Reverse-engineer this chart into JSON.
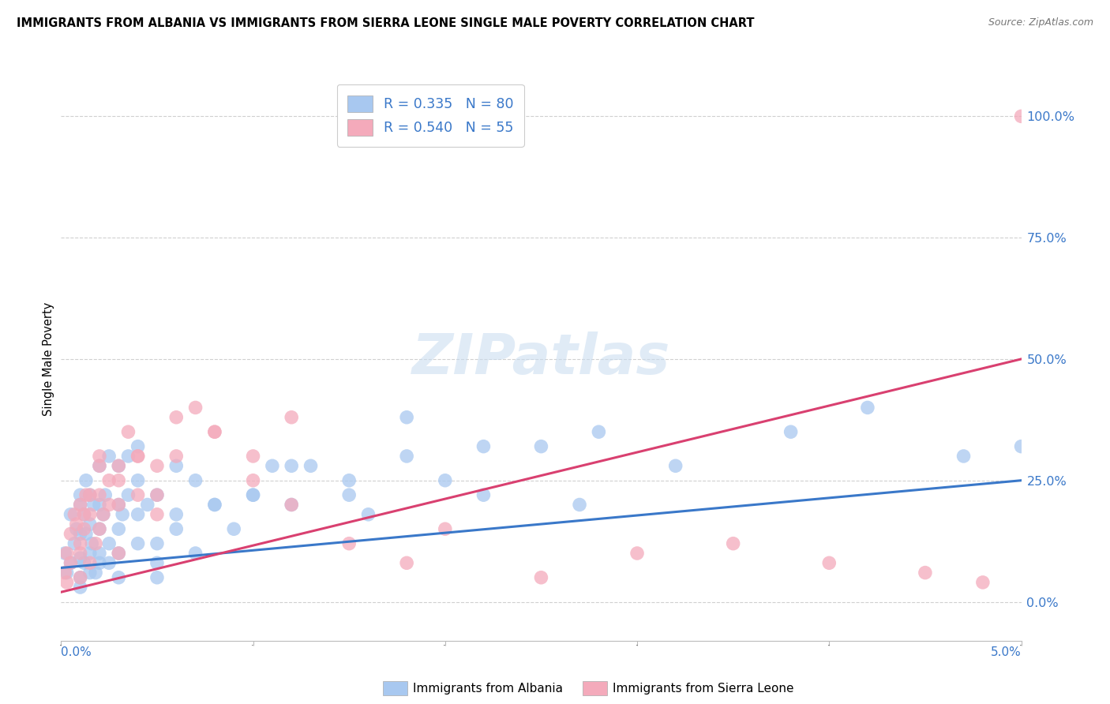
{
  "title": "IMMIGRANTS FROM ALBANIA VS IMMIGRANTS FROM SIERRA LEONE SINGLE MALE POVERTY CORRELATION CHART",
  "source": "Source: ZipAtlas.com",
  "ylabel": "Single Male Poverty",
  "ytick_values": [
    0.0,
    0.25,
    0.5,
    0.75,
    1.0
  ],
  "xlim": [
    0.0,
    0.05
  ],
  "ylim": [
    -0.08,
    1.08
  ],
  "albania_color": "#A8C8F0",
  "sierra_color": "#F4AABB",
  "albania_line_color": "#3A78C9",
  "sierra_line_color": "#D94070",
  "ytick_color": "#3A78C9",
  "watermark_color": "#C8DCF0",
  "albania_R": 0.335,
  "albania_N": 80,
  "sierra_R": 0.54,
  "sierra_N": 55,
  "albania_scatter_x": [
    0.0002,
    0.0003,
    0.0005,
    0.0005,
    0.0007,
    0.0008,
    0.001,
    0.001,
    0.001,
    0.001,
    0.001,
    0.0012,
    0.0012,
    0.0013,
    0.0013,
    0.0015,
    0.0015,
    0.0015,
    0.0016,
    0.0017,
    0.0018,
    0.002,
    0.002,
    0.002,
    0.002,
    0.0022,
    0.0023,
    0.0025,
    0.0025,
    0.003,
    0.003,
    0.003,
    0.003,
    0.0032,
    0.0035,
    0.0035,
    0.004,
    0.004,
    0.004,
    0.0045,
    0.005,
    0.005,
    0.005,
    0.006,
    0.006,
    0.007,
    0.007,
    0.008,
    0.009,
    0.01,
    0.011,
    0.012,
    0.013,
    0.015,
    0.016,
    0.018,
    0.02,
    0.022,
    0.025,
    0.027,
    0.001,
    0.0015,
    0.002,
    0.0025,
    0.003,
    0.004,
    0.005,
    0.006,
    0.008,
    0.01,
    0.012,
    0.015,
    0.018,
    0.022,
    0.028,
    0.032,
    0.038,
    0.042,
    0.047,
    0.05
  ],
  "albania_scatter_y": [
    0.1,
    0.06,
    0.08,
    0.18,
    0.12,
    0.15,
    0.05,
    0.09,
    0.14,
    0.2,
    0.22,
    0.08,
    0.18,
    0.14,
    0.25,
    0.1,
    0.16,
    0.22,
    0.12,
    0.2,
    0.06,
    0.08,
    0.15,
    0.2,
    0.28,
    0.18,
    0.22,
    0.12,
    0.3,
    0.1,
    0.15,
    0.2,
    0.28,
    0.18,
    0.22,
    0.3,
    0.18,
    0.25,
    0.32,
    0.2,
    0.05,
    0.12,
    0.22,
    0.28,
    0.18,
    0.1,
    0.25,
    0.2,
    0.15,
    0.22,
    0.28,
    0.2,
    0.28,
    0.22,
    0.18,
    0.3,
    0.25,
    0.22,
    0.32,
    0.2,
    0.03,
    0.06,
    0.1,
    0.08,
    0.05,
    0.12,
    0.08,
    0.15,
    0.2,
    0.22,
    0.28,
    0.25,
    0.38,
    0.32,
    0.35,
    0.28,
    0.35,
    0.4,
    0.3,
    0.32
  ],
  "sierra_scatter_x": [
    0.0002,
    0.0003,
    0.0005,
    0.0007,
    0.001,
    0.001,
    0.001,
    0.0012,
    0.0013,
    0.0015,
    0.0015,
    0.0018,
    0.002,
    0.002,
    0.002,
    0.0022,
    0.0025,
    0.003,
    0.003,
    0.003,
    0.0035,
    0.004,
    0.004,
    0.005,
    0.005,
    0.006,
    0.007,
    0.008,
    0.01,
    0.012,
    0.0003,
    0.0005,
    0.0008,
    0.001,
    0.0012,
    0.0015,
    0.002,
    0.0025,
    0.003,
    0.004,
    0.005,
    0.006,
    0.008,
    0.01,
    0.012,
    0.015,
    0.018,
    0.02,
    0.025,
    0.03,
    0.035,
    0.04,
    0.045,
    0.048,
    0.05
  ],
  "sierra_scatter_y": [
    0.06,
    0.1,
    0.14,
    0.18,
    0.05,
    0.12,
    0.2,
    0.15,
    0.22,
    0.08,
    0.18,
    0.12,
    0.15,
    0.22,
    0.3,
    0.18,
    0.25,
    0.1,
    0.2,
    0.28,
    0.35,
    0.22,
    0.3,
    0.18,
    0.28,
    0.38,
    0.4,
    0.35,
    0.3,
    0.38,
    0.04,
    0.08,
    0.16,
    0.1,
    0.18,
    0.22,
    0.28,
    0.2,
    0.25,
    0.3,
    0.22,
    0.3,
    0.35,
    0.25,
    0.2,
    0.12,
    0.08,
    0.15,
    0.05,
    0.1,
    0.12,
    0.08,
    0.06,
    0.04,
    1.0
  ]
}
